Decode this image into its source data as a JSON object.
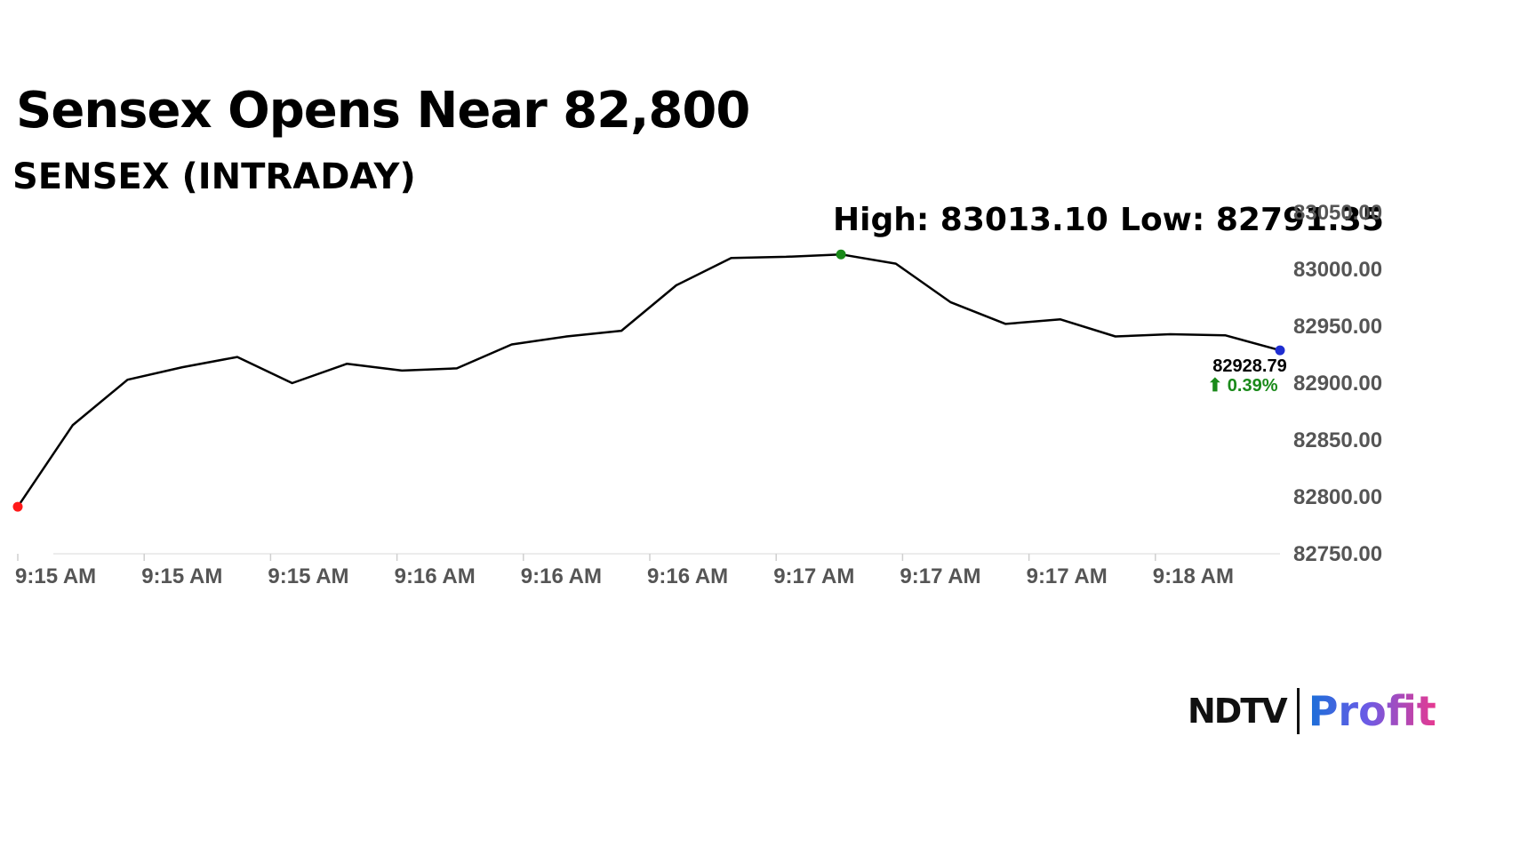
{
  "headline": "Sensex Opens Near 82,800",
  "subheadline": "SENSEX (INTRADAY)",
  "stats": {
    "high": "High: 83013.10",
    "low": "Low: 82791.35"
  },
  "last": {
    "value": "82928.79",
    "change": "⬆ 0.39%"
  },
  "logo": {
    "ndtv": "NDTV",
    "profit": "Profit"
  },
  "colors": {
    "line": "#000000",
    "high_marker": "#1a8a1a",
    "start_marker": "#ff1a1a",
    "last_marker": "#1f2ed1",
    "change_positive": "#1a8a1a",
    "axis_text": "#555555"
  },
  "chart_data": {
    "type": "line",
    "xlabel": "",
    "ylabel": "",
    "x_tick_labels": [
      "9:15 AM",
      "9:15 AM",
      "9:15 AM",
      "9:16 AM",
      "9:16 AM",
      "9:16 AM",
      "9:17 AM",
      "9:17 AM",
      "9:17 AM",
      "9:18 AM"
    ],
    "y_tick_labels": [
      "83050.00",
      "83000.00",
      "82950.00",
      "82900.00",
      "82850.00",
      "82800.00",
      "82750.00"
    ],
    "ylim": [
      82750,
      83050
    ],
    "grid": false,
    "series": [
      {
        "values": [
          82791.35,
          82863.0,
          82903.0,
          82914.0,
          82923.0,
          82900.0,
          82917.0,
          82911.0,
          82913.0,
          82934.0,
          82941.0,
          82946.0,
          82986.0,
          83010.0,
          83011.0,
          83013.1,
          83005.0,
          82971.0,
          82952.0,
          82956.0,
          82941.0,
          82943.0,
          82942.0,
          82928.79
        ]
      }
    ],
    "markers": {
      "start": 82791.35,
      "high": 83013.1,
      "last": 82928.79
    }
  }
}
